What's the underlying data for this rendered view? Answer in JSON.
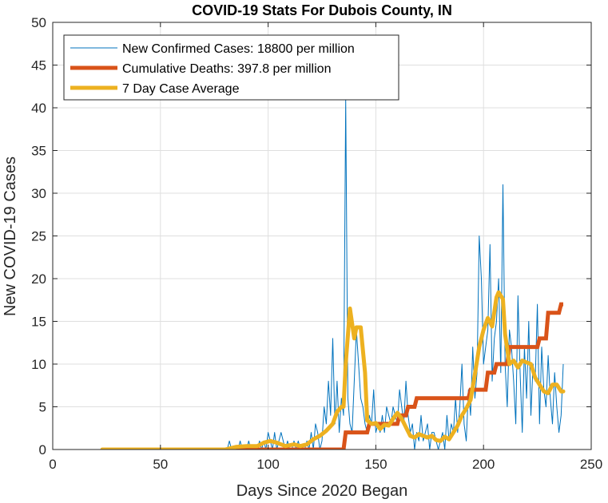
{
  "chart_data": {
    "type": "line",
    "title": "COVID-19 Stats For Dubois County, IN",
    "xlabel": "Days Since 2020 Began",
    "ylabel": "New COVID-19 Cases",
    "xlim": [
      0,
      250
    ],
    "ylim": [
      0,
      50
    ],
    "xticks": [
      0,
      50,
      100,
      150,
      200,
      250
    ],
    "yticks": [
      0,
      5,
      10,
      15,
      20,
      25,
      30,
      35,
      40,
      45,
      50
    ],
    "grid": true,
    "legend_position": "top-left",
    "series": [
      {
        "name": "New Confirmed Cases: 18800 per million",
        "color": "#0072BD",
        "width": 1,
        "x": [
          80,
          81,
          82,
          83,
          84,
          85,
          86,
          87,
          88,
          89,
          90,
          91,
          92,
          93,
          94,
          95,
          96,
          97,
          98,
          99,
          100,
          101,
          102,
          103,
          104,
          105,
          106,
          107,
          108,
          109,
          110,
          111,
          112,
          113,
          114,
          115,
          116,
          117,
          118,
          119,
          120,
          121,
          122,
          123,
          124,
          125,
          126,
          127,
          128,
          129,
          130,
          131,
          132,
          133,
          134,
          135,
          136,
          137,
          138,
          139,
          140,
          141,
          142,
          143,
          144,
          145,
          146,
          147,
          148,
          149,
          150,
          151,
          152,
          153,
          154,
          155,
          156,
          157,
          158,
          159,
          160,
          161,
          162,
          163,
          164,
          165,
          166,
          167,
          168,
          169,
          170,
          171,
          172,
          173,
          174,
          175,
          176,
          177,
          178,
          179,
          180,
          181,
          182,
          183,
          184,
          185,
          186,
          187,
          188,
          189,
          190,
          191,
          192,
          193,
          194,
          195,
          196,
          197,
          198,
          199,
          200,
          201,
          202,
          203,
          204,
          205,
          206,
          207,
          208,
          209,
          210,
          211,
          212,
          213,
          214,
          215,
          216,
          217,
          218,
          219,
          220,
          221,
          222,
          223,
          224,
          225,
          226,
          227,
          228,
          229,
          230,
          231,
          232,
          233,
          234,
          235,
          236,
          237
        ],
        "values": [
          0,
          0,
          1,
          0,
          0,
          0,
          0,
          1,
          0,
          0,
          0,
          1,
          0,
          0,
          0,
          0,
          1,
          0,
          1,
          0,
          2,
          1,
          0,
          2,
          0,
          1,
          2,
          1,
          0,
          1,
          0,
          0,
          1,
          0,
          1,
          0,
          0,
          0,
          1,
          0,
          2,
          0,
          3,
          2,
          0,
          1,
          5,
          3,
          8,
          4,
          13,
          3,
          8,
          2,
          6,
          4,
          41,
          6,
          3,
          2,
          8,
          14,
          10,
          6,
          5,
          3,
          2,
          4,
          3,
          7,
          2,
          3,
          2,
          4,
          2,
          5,
          4,
          3,
          5,
          4,
          3,
          7,
          5,
          3,
          8,
          4,
          2,
          3,
          0,
          2,
          1,
          4,
          1,
          2,
          3,
          0,
          2,
          2,
          1,
          0,
          1,
          2,
          0,
          4,
          1,
          3,
          2,
          6,
          2,
          5,
          10,
          3,
          1,
          7,
          4,
          12,
          6,
          9,
          25,
          20,
          10,
          12,
          14,
          24,
          8,
          13,
          15,
          20,
          9,
          31,
          10,
          5,
          14,
          12,
          8,
          3,
          18,
          9,
          2,
          12,
          6,
          15,
          4,
          10,
          8,
          17,
          3,
          12,
          7,
          5,
          11,
          6,
          3,
          9,
          5,
          2,
          4,
          10
        ],
        "note_x_range": "days 80-237"
      },
      {
        "name": "Cumulative Deaths: 397.8 per million",
        "color": "#D95319",
        "width": 5,
        "steps": [
          [
            23,
            0
          ],
          [
            135,
            0
          ],
          [
            136,
            2
          ],
          [
            146,
            2
          ],
          [
            147,
            3
          ],
          [
            160,
            3
          ],
          [
            161,
            4
          ],
          [
            164,
            4
          ],
          [
            165,
            5
          ],
          [
            168,
            5
          ],
          [
            169,
            6
          ],
          [
            193,
            6
          ],
          [
            194,
            7
          ],
          [
            201,
            7
          ],
          [
            202,
            9
          ],
          [
            205,
            9
          ],
          [
            206,
            10
          ],
          [
            211,
            10
          ],
          [
            212,
            12
          ],
          [
            225,
            12
          ],
          [
            226,
            13
          ],
          [
            229,
            13
          ],
          [
            230,
            16
          ],
          [
            235,
            16
          ],
          [
            236,
            17
          ],
          [
            237,
            17
          ]
        ]
      },
      {
        "name": "7 Day Case Average",
        "color": "#EDB120",
        "width": 5,
        "points": [
          [
            23,
            0
          ],
          [
            80,
            0
          ],
          [
            85,
            0.3
          ],
          [
            90,
            0.4
          ],
          [
            95,
            0.4
          ],
          [
            98,
            0.8
          ],
          [
            101,
            1.0
          ],
          [
            104,
            0.8
          ],
          [
            108,
            0.4
          ],
          [
            112,
            0.6
          ],
          [
            115,
            0.4
          ],
          [
            118,
            0.6
          ],
          [
            121,
            1.2
          ],
          [
            124,
            1.6
          ],
          [
            127,
            2.2
          ],
          [
            130,
            3.0
          ],
          [
            132,
            4.4
          ],
          [
            134,
            5.0
          ],
          [
            135,
            5.0
          ],
          [
            136,
            10.0
          ],
          [
            138,
            16.5
          ],
          [
            140,
            13.0
          ],
          [
            141,
            14.3
          ],
          [
            143,
            14.3
          ],
          [
            145,
            9.0
          ],
          [
            146,
            3.4
          ],
          [
            148,
            3.0
          ],
          [
            150,
            3.1
          ],
          [
            152,
            2.4
          ],
          [
            154,
            2.9
          ],
          [
            156,
            2.8
          ],
          [
            158,
            3.6
          ],
          [
            160,
            4.3
          ],
          [
            162,
            3.6
          ],
          [
            164,
            2.6
          ],
          [
            166,
            1.6
          ],
          [
            168,
            1.4
          ],
          [
            170,
            1.8
          ],
          [
            172,
            1.6
          ],
          [
            174,
            1.4
          ],
          [
            176,
            1.6
          ],
          [
            178,
            1.1
          ],
          [
            180,
            1.0
          ],
          [
            182,
            1.5
          ],
          [
            184,
            1.2
          ],
          [
            186,
            2.0
          ],
          [
            188,
            2.8
          ],
          [
            190,
            4.0
          ],
          [
            192,
            4.8
          ],
          [
            194,
            5.8
          ],
          [
            196,
            8.8
          ],
          [
            198,
            12.0
          ],
          [
            200,
            14.0
          ],
          [
            202,
            15.4
          ],
          [
            204,
            14.4
          ],
          [
            206,
            17.8
          ],
          [
            207,
            18.4
          ],
          [
            209,
            17.6
          ],
          [
            210,
            13.5
          ],
          [
            212,
            10.0
          ],
          [
            214,
            10.4
          ],
          [
            216,
            9.6
          ],
          [
            218,
            10.4
          ],
          [
            220,
            10.2
          ],
          [
            222,
            10.0
          ],
          [
            224,
            8.4
          ],
          [
            226,
            7.6
          ],
          [
            228,
            6.8
          ],
          [
            230,
            6.6
          ],
          [
            232,
            7.6
          ],
          [
            234,
            7.6
          ],
          [
            236,
            6.8
          ],
          [
            237,
            6.8
          ]
        ]
      }
    ]
  }
}
